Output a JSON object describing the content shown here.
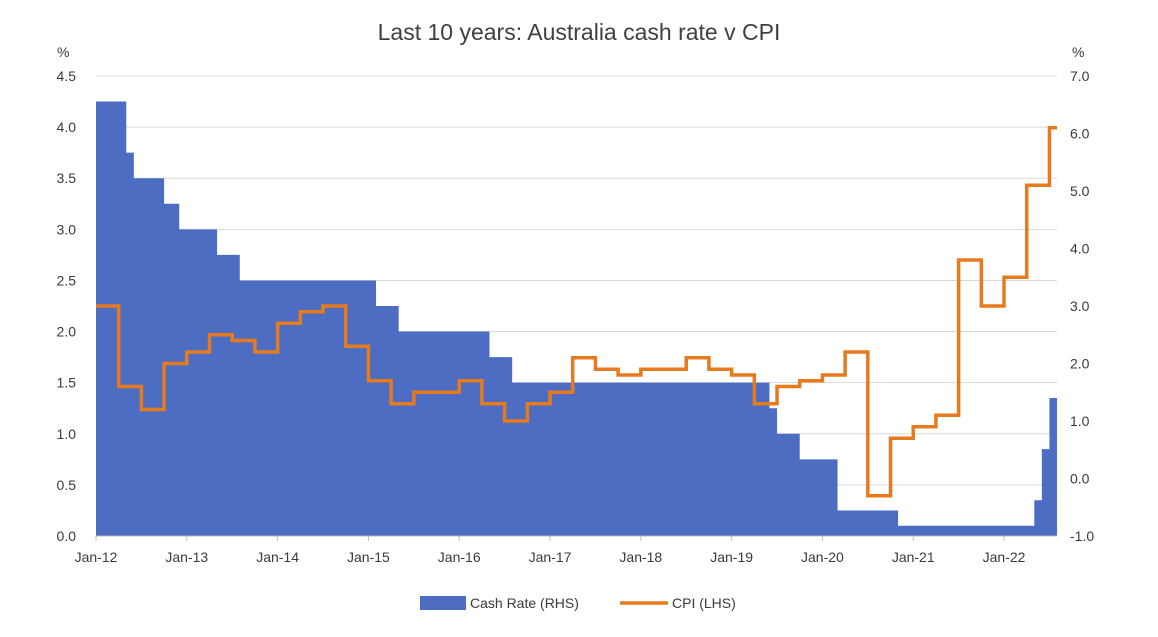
{
  "chart_data": {
    "type": "area+line",
    "title": "Last 10 years: Australia cash rate v CPI",
    "left_axis": {
      "unit_label": "%",
      "ylim": [
        0,
        4.5
      ],
      "ticks": [
        0,
        0.5,
        1,
        1.5,
        2,
        2.5,
        3,
        3.5,
        4,
        4.5
      ],
      "tick_labels": [
        "0.0",
        "0.5",
        "1.0",
        "1.5",
        "2.0",
        "2.5",
        "3.0",
        "3.5",
        "4.0",
        "4.5"
      ]
    },
    "right_axis": {
      "unit_label": "%",
      "ylim": [
        -1,
        7
      ],
      "ticks": [
        -1,
        0,
        1,
        2,
        3,
        4,
        5,
        6,
        7
      ],
      "tick_labels": [
        "-1.0",
        "0.0",
        "1.0",
        "2.0",
        "3.0",
        "4.0",
        "5.0",
        "6.0",
        "7.0"
      ]
    },
    "x_axis": {
      "range": [
        "2012-01",
        "2022-08"
      ],
      "ticks": [
        "2012-01",
        "2013-01",
        "2014-01",
        "2015-01",
        "2016-01",
        "2017-01",
        "2018-01",
        "2019-01",
        "2020-01",
        "2021-01",
        "2022-01"
      ],
      "tick_labels": [
        "Jan-12",
        "Jan-13",
        "Jan-14",
        "Jan-15",
        "Jan-16",
        "Jan-17",
        "Jan-18",
        "Jan-19",
        "Jan-20",
        "Jan-21",
        "Jan-22"
      ]
    },
    "grid": "horizontal",
    "legend_position": "bottom",
    "series": [
      {
        "name": "Cash Rate (RHS)",
        "kind": "area-step",
        "color": "#4c6dc2",
        "points": [
          [
            "2012-01",
            4.25
          ],
          [
            "2012-05",
            3.75
          ],
          [
            "2012-06",
            3.5
          ],
          [
            "2012-10",
            3.25
          ],
          [
            "2012-12",
            3.0
          ],
          [
            "2013-05",
            2.75
          ],
          [
            "2013-08",
            2.5
          ],
          [
            "2015-02",
            2.25
          ],
          [
            "2015-05",
            2.0
          ],
          [
            "2016-05",
            1.75
          ],
          [
            "2016-08",
            1.5
          ],
          [
            "2019-06",
            1.25
          ],
          [
            "2019-07",
            1.0
          ],
          [
            "2019-10",
            0.75
          ],
          [
            "2020-03",
            0.5
          ],
          [
            "2020-03",
            0.25
          ],
          [
            "2020-11",
            0.1
          ],
          [
            "2022-05",
            0.35
          ],
          [
            "2022-06",
            0.85
          ],
          [
            "2022-07",
            1.35
          ],
          [
            "2022-08",
            1.85
          ]
        ]
      },
      {
        "name": "CPI (LHS)",
        "kind": "line-step",
        "color": "#e87a1e",
        "points": [
          [
            "2012-01",
            3.0
          ],
          [
            "2012-04",
            1.6
          ],
          [
            "2012-07",
            1.2
          ],
          [
            "2012-10",
            2.0
          ],
          [
            "2013-01",
            2.2
          ],
          [
            "2013-04",
            2.5
          ],
          [
            "2013-07",
            2.4
          ],
          [
            "2013-10",
            2.2
          ],
          [
            "2014-01",
            2.7
          ],
          [
            "2014-04",
            2.9
          ],
          [
            "2014-07",
            3.0
          ],
          [
            "2014-10",
            2.3
          ],
          [
            "2015-01",
            1.7
          ],
          [
            "2015-04",
            1.3
          ],
          [
            "2015-07",
            1.5
          ],
          [
            "2015-10",
            1.5
          ],
          [
            "2016-01",
            1.7
          ],
          [
            "2016-04",
            1.3
          ],
          [
            "2016-07",
            1.0
          ],
          [
            "2016-10",
            1.3
          ],
          [
            "2017-01",
            1.5
          ],
          [
            "2017-04",
            2.1
          ],
          [
            "2017-07",
            1.9
          ],
          [
            "2017-10",
            1.8
          ],
          [
            "2018-01",
            1.9
          ],
          [
            "2018-04",
            1.9
          ],
          [
            "2018-07",
            2.1
          ],
          [
            "2018-10",
            1.9
          ],
          [
            "2019-01",
            1.8
          ],
          [
            "2019-04",
            1.3
          ],
          [
            "2019-07",
            1.6
          ],
          [
            "2019-10",
            1.7
          ],
          [
            "2020-01",
            1.8
          ],
          [
            "2020-04",
            2.2
          ],
          [
            "2020-07",
            -0.3
          ],
          [
            "2020-10",
            0.7
          ],
          [
            "2021-01",
            0.9
          ],
          [
            "2021-04",
            1.1
          ],
          [
            "2021-07",
            3.8
          ],
          [
            "2021-10",
            3.0
          ],
          [
            "2022-01",
            3.5
          ],
          [
            "2022-04",
            5.1
          ],
          [
            "2022-07",
            6.1
          ]
        ],
        "end": "2022-08"
      }
    ]
  }
}
